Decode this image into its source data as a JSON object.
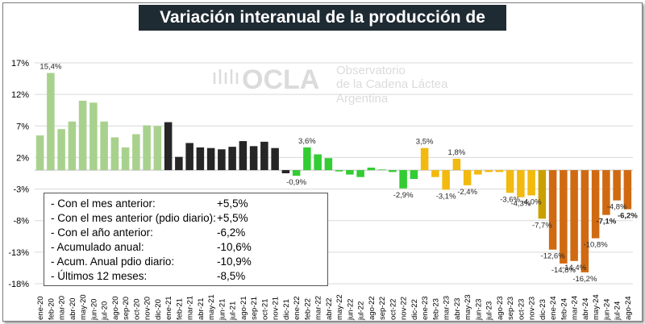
{
  "title": "Variación interanual de la producción de leche",
  "logo": {
    "name": "OCLA",
    "line1": "Observatorio",
    "line2": "de la Cadena Láctea",
    "line3": "Argentina"
  },
  "colors": {
    "2020": "#a9d18e",
    "2021": "#262626",
    "2022": "#33cc33",
    "2023": "#f2b90f",
    "2023b": "#c9a000",
    "2024": "#d06a12",
    "grid": "#d9d9d9"
  },
  "summary": [
    {
      "label": "- Con el mes anterior:",
      "value": "+5,5%"
    },
    {
      "label": "- Con el mes anterior (pdio diario):",
      "value": "+5,5%"
    },
    {
      "label": "- Con el año anterior:",
      "value": "-6,2%"
    },
    {
      "label": "- Acumulado anual:",
      "value": "-10,6%"
    },
    {
      "label": "- Acum. Anual pdio diario:",
      "value": "-10,9%"
    },
    {
      "label": "- Últimos 12 meses:",
      "value": "-8,5%"
    }
  ],
  "chart_data": {
    "type": "bar",
    "title": "Variación interanual de la producción de leche",
    "ylim": [
      -18,
      17
    ],
    "yticks": [
      "17%",
      "12%",
      "7%",
      "2%",
      "-3%",
      "-8%",
      "-13%",
      "-18%"
    ],
    "ytick_values": [
      17,
      12,
      7,
      2,
      -3,
      -8,
      -13,
      -18
    ],
    "categories": [
      "ene-20",
      "feb-20",
      "mar-20",
      "abr-20",
      "may-20",
      "jun-20",
      "jul-20",
      "ago-20",
      "sep-20",
      "oct-20",
      "nov-20",
      "dic-20",
      "ene-21",
      "feb-21",
      "mar-21",
      "abr-21",
      "may-21",
      "jun-21",
      "jul-21",
      "ago-21",
      "sep-21",
      "oct-21",
      "nov-21",
      "dic-21",
      "ene-22",
      "feb-22",
      "mar-22",
      "abr-22",
      "may-22",
      "jun-22",
      "jul-22",
      "ago-22",
      "sep-22",
      "oct-22",
      "nov-22",
      "dic-22",
      "ene-23",
      "feb-23",
      "mar-23",
      "abr-23",
      "may-23",
      "jun-23",
      "jul-23",
      "ago-23",
      "sep-23",
      "oct-23",
      "nov-23",
      "dic-23",
      "ene-24",
      "feb-24",
      "mar-24",
      "abr-24",
      "may-24",
      "jun-24",
      "jul-24",
      "ago-24"
    ],
    "values": [
      5.5,
      15.4,
      6.5,
      7.7,
      11.0,
      10.7,
      7.7,
      5.2,
      3.6,
      5.7,
      7.1,
      7.0,
      7.6,
      2.1,
      4.3,
      3.6,
      3.5,
      3.3,
      3.7,
      4.6,
      3.8,
      4.5,
      3.5,
      -0.5,
      -0.9,
      3.6,
      2.5,
      1.9,
      -0.2,
      -0.7,
      -1.1,
      0.4,
      0.1,
      -0.3,
      -2.9,
      -1.4,
      3.5,
      -1.1,
      -3.1,
      1.8,
      -2.4,
      -0.7,
      -0.3,
      -0.3,
      -3.6,
      -4.3,
      -4.0,
      -7.7,
      -12.6,
      -14.8,
      -14.4,
      -16.2,
      -10.8,
      -7.1,
      -4.8,
      -6.2
    ],
    "data_labels": [
      {
        "index": 1,
        "text": "15,4%"
      },
      {
        "index": 24,
        "text": "-0,9%"
      },
      {
        "index": 25,
        "text": "3,6%"
      },
      {
        "index": 34,
        "text": "-2,9%"
      },
      {
        "index": 36,
        "text": "3,5%"
      },
      {
        "index": 38,
        "text": "-3,1%"
      },
      {
        "index": 39,
        "text": "1,8%"
      },
      {
        "index": 40,
        "text": "-2,4%"
      },
      {
        "index": 44,
        "text": "-3,6%"
      },
      {
        "index": 45,
        "text": "-4,3%"
      },
      {
        "index": 46,
        "text": "-4,0%"
      },
      {
        "index": 47,
        "text": "-7,7%"
      },
      {
        "index": 48,
        "text": "-12,6%"
      },
      {
        "index": 49,
        "text": "-14,8%"
      },
      {
        "index": 50,
        "text": "-14,4%"
      },
      {
        "index": 51,
        "text": "-16,2%"
      },
      {
        "index": 52,
        "text": "-10,8%"
      },
      {
        "index": 53,
        "text": "-7,1%",
        "bold": true
      },
      {
        "index": 54,
        "text": "-4,8%"
      },
      {
        "index": 55,
        "text": "-6,2%",
        "bold": true
      }
    ],
    "legend": "none",
    "grid": true
  }
}
